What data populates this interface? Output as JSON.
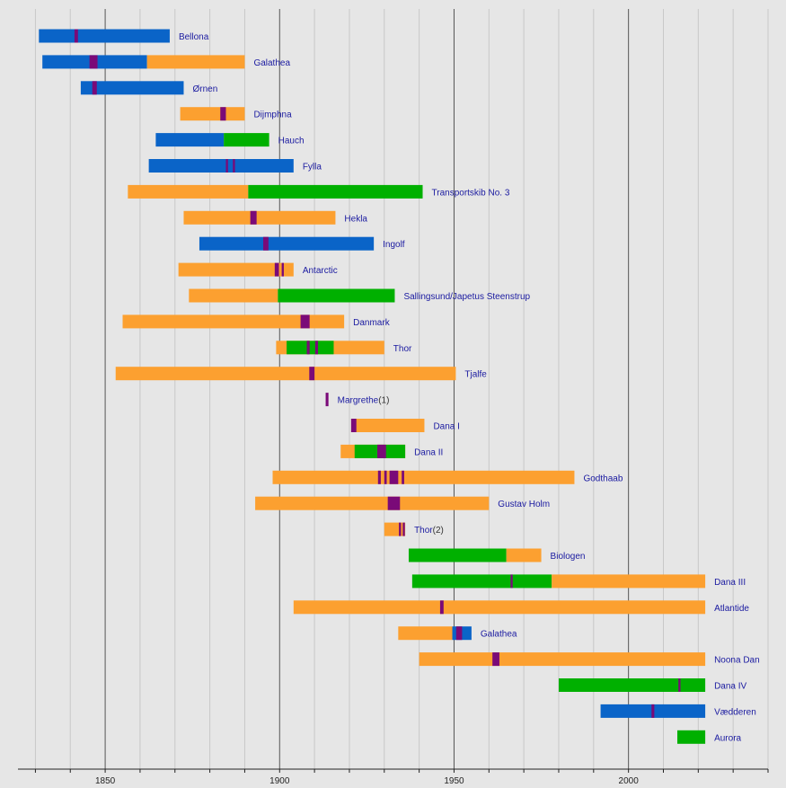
{
  "chart_data": {
    "type": "timeline",
    "xlim": [
      1825,
      2040
    ],
    "x_ticks": [
      1850,
      1900,
      1950,
      2000
    ],
    "legend_colors": {
      "blue": "#0a64c8",
      "orange": "#fca030",
      "green": "#00b000",
      "purple": "#7a0a78"
    },
    "ships": [
      {
        "label": "Bellona",
        "segments": [
          {
            "start": 1831,
            "end": 1868.5,
            "color": "blue"
          }
        ],
        "marks": [
          {
            "start": 1841.2,
            "end": 1842.2
          }
        ]
      },
      {
        "label": "Galathea",
        "segments": [
          {
            "start": 1832,
            "end": 1862,
            "color": "blue"
          },
          {
            "start": 1862,
            "end": 1890,
            "color": "orange"
          }
        ],
        "marks": [
          {
            "start": 1845.5,
            "end": 1847.8
          }
        ]
      },
      {
        "label": "Ørnen",
        "segments": [
          {
            "start": 1843,
            "end": 1872.5,
            "color": "blue"
          }
        ],
        "marks": [
          {
            "start": 1846.3,
            "end": 1847.6
          }
        ]
      },
      {
        "label": "Dijmphna",
        "segments": [
          {
            "start": 1871.5,
            "end": 1890,
            "color": "orange"
          }
        ],
        "marks": [
          {
            "start": 1883,
            "end": 1884.6
          }
        ]
      },
      {
        "label": "Hauch",
        "segments": [
          {
            "start": 1864.5,
            "end": 1884,
            "color": "blue"
          },
          {
            "start": 1884,
            "end": 1897,
            "color": "green"
          }
        ],
        "marks": []
      },
      {
        "label": "Fylla",
        "segments": [
          {
            "start": 1862.5,
            "end": 1904,
            "color": "blue"
          }
        ],
        "marks": [
          {
            "start": 1884.6,
            "end": 1885.2
          },
          {
            "start": 1886.6,
            "end": 1887.2
          }
        ]
      },
      {
        "label": "Transportskib No. 3",
        "segments": [
          {
            "start": 1856.5,
            "end": 1891,
            "color": "orange"
          },
          {
            "start": 1891,
            "end": 1941,
            "color": "green"
          }
        ],
        "marks": []
      },
      {
        "label": "Hekla",
        "segments": [
          {
            "start": 1872.5,
            "end": 1916,
            "color": "orange"
          }
        ],
        "marks": [
          {
            "start": 1891.6,
            "end": 1893.4
          }
        ]
      },
      {
        "label": "Ingolf",
        "segments": [
          {
            "start": 1877,
            "end": 1927,
            "color": "blue"
          }
        ],
        "marks": [
          {
            "start": 1895.3,
            "end": 1896.8
          }
        ]
      },
      {
        "label": "Antarctic",
        "segments": [
          {
            "start": 1871,
            "end": 1904,
            "color": "orange"
          }
        ],
        "marks": [
          {
            "start": 1898.6,
            "end": 1899.8
          },
          {
            "start": 1900.6,
            "end": 1901.2
          }
        ]
      },
      {
        "label": "Sallingsund/Japetus Steenstrup",
        "segments": [
          {
            "start": 1874,
            "end": 1899.5,
            "color": "orange"
          },
          {
            "start": 1899.5,
            "end": 1933,
            "color": "green"
          }
        ],
        "marks": []
      },
      {
        "label": "Danmark",
        "segments": [
          {
            "start": 1855,
            "end": 1918.5,
            "color": "orange"
          }
        ],
        "marks": [
          {
            "start": 1906,
            "end": 1908.6
          }
        ]
      },
      {
        "label": "Thor",
        "segments": [
          {
            "start": 1899,
            "end": 1930,
            "color": "orange"
          },
          {
            "start": 1902,
            "end": 1915.5,
            "color": "green"
          }
        ],
        "marks": [
          {
            "start": 1907.8,
            "end": 1908.6
          },
          {
            "start": 1910.2,
            "end": 1911
          }
        ]
      },
      {
        "label": "Tjalfe",
        "segments": [
          {
            "start": 1853,
            "end": 1950.5,
            "color": "orange"
          }
        ],
        "marks": [
          {
            "start": 1908.5,
            "end": 1910
          }
        ]
      },
      {
        "label": "Margrethe",
        "label_suffix": "(1)",
        "segments": [],
        "marks": [
          {
            "start": 1913.2,
            "end": 1914
          }
        ]
      },
      {
        "label": "Dana I",
        "segments": [
          {
            "start": 1920.5,
            "end": 1941.5,
            "color": "orange"
          }
        ],
        "marks": [
          {
            "start": 1920.5,
            "end": 1922
          }
        ]
      },
      {
        "label": "Dana II",
        "segments": [
          {
            "start": 1917.5,
            "end": 1936,
            "color": "orange"
          },
          {
            "start": 1921.5,
            "end": 1936,
            "color": "green"
          }
        ],
        "marks": [
          {
            "start": 1928,
            "end": 1930.5
          }
        ]
      },
      {
        "label": "Godthaab",
        "segments": [
          {
            "start": 1898,
            "end": 1984.5,
            "color": "orange"
          }
        ],
        "marks": [
          {
            "start": 1928.2,
            "end": 1929
          },
          {
            "start": 1930,
            "end": 1930.7
          },
          {
            "start": 1931.5,
            "end": 1934
          },
          {
            "start": 1935,
            "end": 1935.7
          }
        ]
      },
      {
        "label": "Gustav Holm",
        "segments": [
          {
            "start": 1893,
            "end": 1960,
            "color": "orange"
          }
        ],
        "marks": [
          {
            "start": 1931,
            "end": 1934.5
          }
        ]
      },
      {
        "label": "Thor",
        "label_suffix": "(2)",
        "segments": [
          {
            "start": 1930,
            "end": 1936,
            "color": "orange"
          }
        ],
        "marks": [
          {
            "start": 1934.2,
            "end": 1934.8
          },
          {
            "start": 1935.3,
            "end": 1935.9
          }
        ]
      },
      {
        "label": "Biologen",
        "segments": [
          {
            "start": 1937,
            "end": 1965,
            "color": "green"
          },
          {
            "start": 1965,
            "end": 1975,
            "color": "orange"
          }
        ],
        "marks": []
      },
      {
        "label": "Dana III",
        "segments": [
          {
            "start": 1938,
            "end": 1978,
            "color": "green"
          },
          {
            "start": 1978,
            "end": 2022,
            "color": "orange"
          }
        ],
        "marks": [
          {
            "start": 1966.2,
            "end": 1966.8
          }
        ]
      },
      {
        "label": "Atlantide",
        "segments": [
          {
            "start": 1904,
            "end": 2022,
            "color": "orange"
          }
        ],
        "marks": [
          {
            "start": 1946,
            "end": 1947
          }
        ]
      },
      {
        "label": "Galathea",
        "segments": [
          {
            "start": 1934,
            "end": 1949.5,
            "color": "orange"
          },
          {
            "start": 1949.5,
            "end": 1955,
            "color": "blue"
          }
        ],
        "marks": [
          {
            "start": 1950.6,
            "end": 1952.3
          }
        ]
      },
      {
        "label": "Noona Dan",
        "segments": [
          {
            "start": 1940,
            "end": 2022,
            "color": "orange"
          }
        ],
        "marks": [
          {
            "start": 1961,
            "end": 1963
          }
        ]
      },
      {
        "label": "Dana IV",
        "segments": [
          {
            "start": 1980,
            "end": 2022,
            "color": "green"
          }
        ],
        "marks": [
          {
            "start": 2014.3,
            "end": 2014.9
          }
        ]
      },
      {
        "label": "Vædderen",
        "segments": [
          {
            "start": 1992,
            "end": 2022,
            "color": "blue"
          }
        ],
        "marks": [
          {
            "start": 2006.6,
            "end": 2007.4
          }
        ]
      },
      {
        "label": "Aurora",
        "segments": [
          {
            "start": 2014,
            "end": 2022,
            "color": "green"
          }
        ],
        "marks": []
      }
    ]
  }
}
